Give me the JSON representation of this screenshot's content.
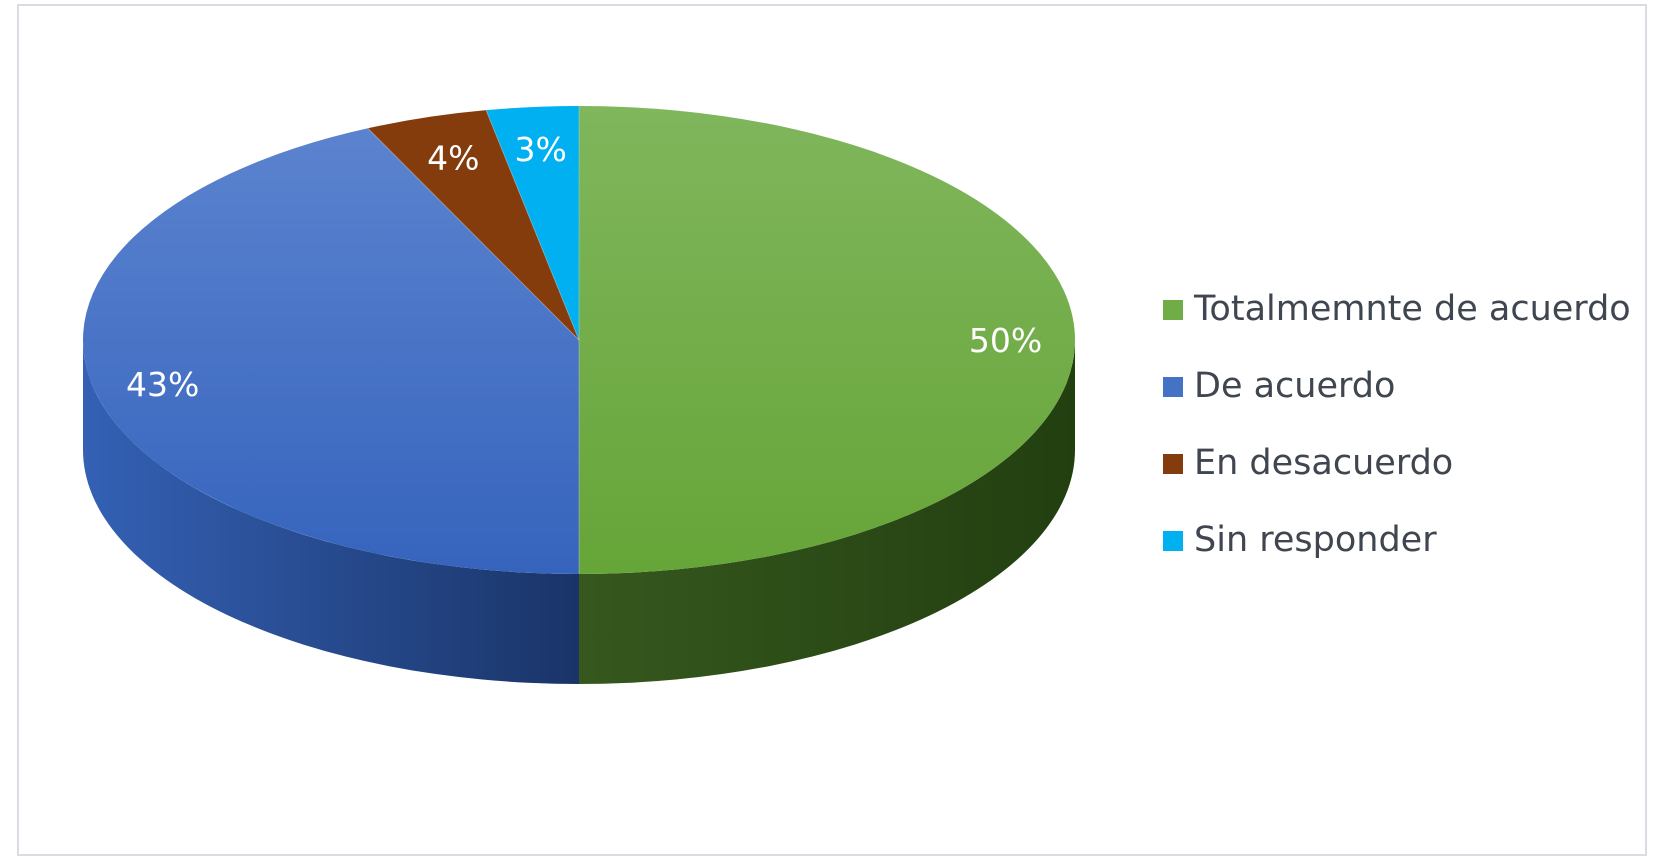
{
  "chart_data": {
    "type": "pie",
    "style": "3d",
    "categories": [
      "Totalmemnte de acuerdo",
      "De acuerdo",
      "En desacuerdo",
      "Sin responder"
    ],
    "values": [
      50,
      43,
      4,
      3
    ],
    "data_labels": [
      "50%",
      "43%",
      "4%",
      "3%"
    ],
    "colors": [
      "#70ad47",
      "#4472c4",
      "#843c0c",
      "#00b0f0"
    ],
    "legend_position": "right",
    "title": ""
  },
  "legend": {
    "items": [
      {
        "label": "Totalmemnte de acuerdo",
        "color": "#70ad47"
      },
      {
        "label": "De acuerdo",
        "color": "#4472c4"
      },
      {
        "label": "En desacuerdo",
        "color": "#843c0c"
      },
      {
        "label": "Sin responder",
        "color": "#00b0f0"
      }
    ]
  }
}
